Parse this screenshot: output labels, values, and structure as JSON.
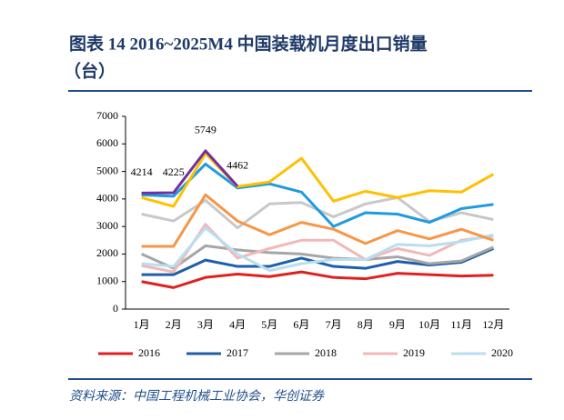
{
  "chart_data": {
    "type": "line",
    "title": "图表 14   2016~2025M4 中国装载机月度出口销量",
    "title_unit": "（台）",
    "source": "资料来源：中国工程机械工业协会，华创证券",
    "categories": [
      "1月",
      "2月",
      "3月",
      "4月",
      "5月",
      "6月",
      "7月",
      "8月",
      "9月",
      "10月",
      "11月",
      "12月"
    ],
    "ylim": [
      0,
      7000
    ],
    "yticks": [
      0,
      1000,
      2000,
      3000,
      4000,
      5000,
      6000,
      7000
    ],
    "series": [
      {
        "name": "2016",
        "color": "#e02020",
        "values": [
          1000,
          780,
          1150,
          1270,
          1180,
          1350,
          1150,
          1100,
          1300,
          1250,
          1200,
          1230
        ]
      },
      {
        "name": "2017",
        "color": "#1f5fa8",
        "values": [
          1250,
          1250,
          1780,
          1550,
          1550,
          1850,
          1550,
          1480,
          1730,
          1600,
          1700,
          2200
        ]
      },
      {
        "name": "2018",
        "color": "#a6a6a6",
        "values": [
          2000,
          1480,
          2300,
          2150,
          2050,
          2000,
          1850,
          1800,
          1900,
          1650,
          1750,
          2250
        ]
      },
      {
        "name": "2019",
        "color": "#f2b8b8",
        "values": [
          1580,
          1350,
          3080,
          1850,
          2200,
          2500,
          2500,
          1800,
          2200,
          1950,
          2500,
          2650
        ]
      },
      {
        "name": "2020",
        "color": "#b8dff0",
        "values": [
          1650,
          1550,
          2950,
          2000,
          1400,
          1650,
          1800,
          1800,
          2350,
          2300,
          2450,
          2700
        ]
      },
      {
        "color": "#c8c8c8",
        "values": [
          3450,
          3200,
          3950,
          2950,
          3820,
          3870,
          3350,
          3820,
          4050,
          3180,
          3500,
          3250
        ]
      },
      {
        "color": "#f79646",
        "values": [
          2280,
          2280,
          4150,
          3200,
          2700,
          3150,
          2900,
          2380,
          2850,
          2550,
          2900,
          2500
        ]
      },
      {
        "color": "#1f9bde",
        "values": [
          4150,
          4100,
          5270,
          4400,
          4550,
          4250,
          3000,
          3500,
          3450,
          3150,
          3650,
          3800
        ]
      },
      {
        "color": "#ffc000",
        "values": [
          4050,
          3730,
          5650,
          4450,
          4620,
          5480,
          3920,
          4280,
          4050,
          4300,
          4250,
          4900
        ]
      },
      {
        "color": "#7030a0",
        "values": [
          4214,
          4225,
          5749,
          4462,
          null,
          null,
          null,
          null,
          null,
          null,
          null,
          null
        ],
        "value_labels": [
          "4214",
          "4225",
          "5749",
          "4462",
          null,
          null,
          null,
          null,
          null,
          null,
          null,
          null
        ]
      }
    ]
  }
}
